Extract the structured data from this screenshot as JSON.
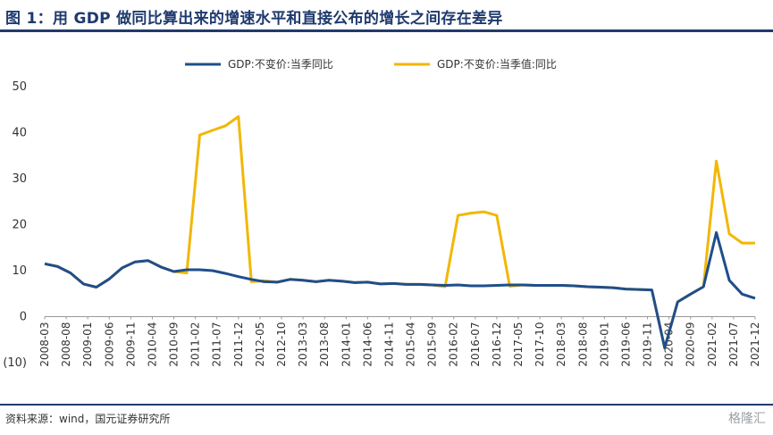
{
  "header": {
    "title": "图 1：用 GDP 做同比算出来的增速水平和直接公布的增长之间存在差异"
  },
  "footer": {
    "source": "资料来源：wind，国元证券研究所",
    "watermark": "格隆汇"
  },
  "chart_data": {
    "type": "line",
    "title": "",
    "xlabel": "",
    "ylabel": "",
    "ylim": [
      -10,
      50
    ],
    "yticks": [
      50,
      40,
      30,
      20,
      10,
      0,
      -10
    ],
    "ytick_labels": [
      "50",
      "40",
      "30",
      "20",
      "10",
      "0",
      "(10)"
    ],
    "negative_label_color": "#c00000",
    "legend_position": "top",
    "x_tick_labels": [
      "2008-03",
      "2008-08",
      "2009-01",
      "2009-06",
      "2009-11",
      "2010-04",
      "2010-09",
      "2011-02",
      "2011-07",
      "2011-12",
      "2012-05",
      "2012-10",
      "2013-03",
      "2013-08",
      "2014-01",
      "2014-06",
      "2014-11",
      "2015-04",
      "2015-09",
      "2016-02",
      "2016-07",
      "2016-12",
      "2017-05",
      "2017-10",
      "2018-03",
      "2018-08",
      "2019-01",
      "2019-06",
      "2019-11",
      "2020-04",
      "2020-09",
      "2021-02",
      "2021-07",
      "2021-12"
    ],
    "x": [
      "2008-03",
      "2008-06",
      "2008-09",
      "2008-12",
      "2009-03",
      "2009-06",
      "2009-09",
      "2009-12",
      "2010-03",
      "2010-06",
      "2010-09",
      "2010-12",
      "2011-03",
      "2011-06",
      "2011-09",
      "2011-12",
      "2012-03",
      "2012-06",
      "2012-09",
      "2012-12",
      "2013-03",
      "2013-06",
      "2013-09",
      "2013-12",
      "2014-03",
      "2014-06",
      "2014-09",
      "2014-12",
      "2015-03",
      "2015-06",
      "2015-09",
      "2015-12",
      "2016-03",
      "2016-06",
      "2016-09",
      "2016-12",
      "2017-03",
      "2017-06",
      "2017-09",
      "2017-12",
      "2018-03",
      "2018-06",
      "2018-09",
      "2018-12",
      "2019-03",
      "2019-06",
      "2019-09",
      "2019-12",
      "2020-03",
      "2020-06",
      "2020-09",
      "2020-12",
      "2021-03",
      "2021-06",
      "2021-09",
      "2021-12"
    ],
    "series": [
      {
        "name": "GDP:不变价:当季同比",
        "color": "#1f4e8c",
        "values": [
          11.5,
          10.9,
          9.5,
          7.1,
          6.4,
          8.2,
          10.6,
          11.9,
          12.2,
          10.8,
          9.8,
          10.2,
          10.2,
          10.0,
          9.4,
          8.7,
          8.1,
          7.6,
          7.5,
          8.1,
          7.9,
          7.6,
          7.9,
          7.7,
          7.4,
          7.5,
          7.1,
          7.2,
          7.0,
          7.0,
          6.9,
          6.8,
          6.9,
          6.7,
          6.7,
          6.8,
          6.9,
          6.9,
          6.8,
          6.8,
          6.8,
          6.7,
          6.5,
          6.4,
          6.3,
          6.0,
          5.9,
          5.8,
          -6.8,
          3.2,
          4.9,
          6.5,
          18.3,
          7.9,
          4.9,
          4.0
        ]
      },
      {
        "name": "GDP:不变价:当季值:同比",
        "color": "#f2b705",
        "values": [
          11.5,
          10.9,
          9.5,
          7.1,
          6.4,
          8.2,
          10.6,
          11.9,
          12.2,
          10.8,
          9.8,
          9.5,
          39.5,
          40.5,
          41.5,
          43.5,
          7.6,
          7.8,
          7.5,
          8.1,
          7.9,
          7.6,
          7.9,
          7.7,
          7.4,
          7.5,
          7.1,
          7.2,
          7.0,
          7.0,
          6.9,
          6.5,
          22.0,
          22.5,
          22.8,
          22.0,
          6.6,
          6.9,
          6.8,
          6.8,
          6.8,
          6.7,
          6.5,
          6.4,
          6.3,
          6.0,
          5.9,
          5.8,
          -6.8,
          3.2,
          4.9,
          6.5,
          33.8,
          18.0,
          16.0,
          16.0
        ]
      }
    ]
  }
}
